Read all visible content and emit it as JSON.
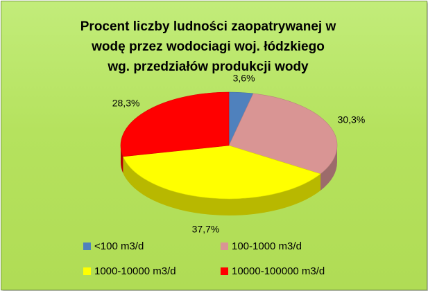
{
  "chart_data": {
    "type": "pie",
    "title_lines": [
      "Procent liczby ludności zaopatrywanej w",
      "wodę przez wodociagi woj. łódzkiego",
      "wg. przedziałów produkcji wody"
    ],
    "unit": "%",
    "slices": [
      {
        "name": "<100 m3/d",
        "value": 3.6,
        "label": "3,6%",
        "color": "#4f81bd"
      },
      {
        "name": "100-1000 m3/d",
        "value": 30.3,
        "label": "30,3%",
        "color": "#d99594"
      },
      {
        "name": "1000-10000 m3/d",
        "value": 37.7,
        "label": "37,7%",
        "color": "#ffff00"
      },
      {
        "name": "10000-100000 m3/d",
        "value": 28.3,
        "label": "28,3%",
        "color": "#ff0000"
      }
    ],
    "legend_position": "bottom",
    "style": "3d-pie"
  }
}
